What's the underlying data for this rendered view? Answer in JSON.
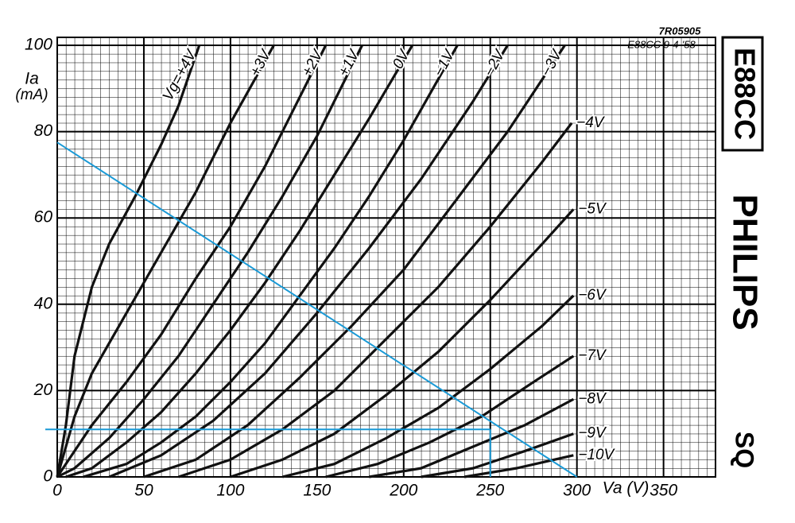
{
  "chart_data": {
    "type": "line",
    "code": "7R05905",
    "subtitle": "E88CC 9-4-'58",
    "tube": "E88CC",
    "brand": "PHILIPS",
    "mark": "SQ",
    "ylabel": "Ia",
    "yunit": "(mA)",
    "xlabel": "Va (V)",
    "xlim": [
      0,
      380
    ],
    "ylim": [
      0,
      100
    ],
    "xticks": [
      0,
      50,
      100,
      150,
      200,
      250,
      300,
      350
    ],
    "yticks": [
      0,
      20,
      40,
      60,
      80,
      100
    ],
    "grid": true,
    "color": "#111111",
    "series": [
      {
        "name": "Vg=+4V",
        "x": [
          0,
          5,
          10,
          20,
          30,
          45,
          60,
          70,
          82
        ],
        "values": [
          0,
          12,
          28,
          44,
          54,
          65,
          77,
          86,
          100
        ]
      },
      {
        "name": "+3V",
        "x": [
          0,
          10,
          20,
          40,
          60,
          80,
          100,
          125
        ],
        "values": [
          0,
          14,
          24,
          38,
          52,
          66,
          82,
          100
        ]
      },
      {
        "name": "+2V",
        "x": [
          0,
          20,
          40,
          60,
          80,
          100,
          120,
          140,
          155
        ],
        "values": [
          0,
          12,
          22,
          33,
          46,
          58,
          72,
          88,
          100
        ]
      },
      {
        "name": "+1V",
        "x": [
          0,
          10,
          30,
          50,
          70,
          90,
          110,
          130,
          150,
          176
        ],
        "values": [
          0,
          2,
          9,
          18,
          28,
          40,
          52,
          65,
          79,
          100
        ]
      },
      {
        "name": "0V",
        "x": [
          5,
          20,
          40,
          60,
          80,
          100,
          120,
          140,
          160,
          180,
          205
        ],
        "values": [
          0,
          2,
          8,
          15,
          24,
          34,
          45,
          57,
          70,
          83,
          100
        ]
      },
      {
        "name": "−1V",
        "x": [
          15,
          40,
          60,
          80,
          100,
          120,
          140,
          160,
          180,
          200,
          231
        ],
        "values": [
          0,
          3,
          8,
          14,
          22,
          31,
          42,
          53,
          65,
          78,
          100
        ]
      },
      {
        "name": "−2V",
        "x": [
          30,
          60,
          90,
          120,
          150,
          180,
          210,
          240,
          260
        ],
        "values": [
          0,
          5,
          13,
          24,
          38,
          53,
          69,
          87,
          100
        ]
      },
      {
        "name": "−3V",
        "x": [
          50,
          80,
          110,
          140,
          170,
          200,
          230,
          260,
          293
        ],
        "values": [
          0,
          4,
          12,
          23,
          35,
          48,
          64,
          80,
          100
        ]
      },
      {
        "name": "−4V",
        "x": [
          70,
          100,
          130,
          160,
          190,
          220,
          250,
          280,
          297
        ],
        "values": [
          0,
          4,
          11,
          20,
          32,
          44,
          58,
          73,
          82
        ]
      },
      {
        "name": "−5V",
        "x": [
          100,
          130,
          160,
          190,
          220,
          250,
          280,
          298
        ],
        "values": [
          0,
          4,
          10,
          19,
          29,
          41,
          54,
          62
        ]
      },
      {
        "name": "−6V",
        "x": [
          130,
          160,
          190,
          220,
          250,
          280,
          298
        ],
        "values": [
          0,
          3,
          9,
          16,
          25,
          35,
          42
        ]
      },
      {
        "name": "−7V",
        "x": [
          155,
          185,
          215,
          245,
          275,
          298
        ],
        "values": [
          0,
          3,
          8,
          14,
          22,
          28
        ]
      },
      {
        "name": "−8V",
        "x": [
          180,
          210,
          240,
          270,
          298
        ],
        "values": [
          0,
          2,
          7,
          12,
          18
        ]
      },
      {
        "name": "−9V",
        "x": [
          210,
          240,
          270,
          298
        ],
        "values": [
          0,
          2,
          6,
          10
        ]
      },
      {
        "name": "−10V",
        "x": [
          235,
          265,
          298
        ],
        "values": [
          0,
          2,
          5
        ]
      }
    ],
    "load_line": {
      "color": "#1a9ad6",
      "x": [
        0,
        300
      ],
      "values": [
        77.5,
        0
      ]
    },
    "operating_point": {
      "color": "#1a9ad6",
      "x": 250,
      "value": 11
    }
  }
}
